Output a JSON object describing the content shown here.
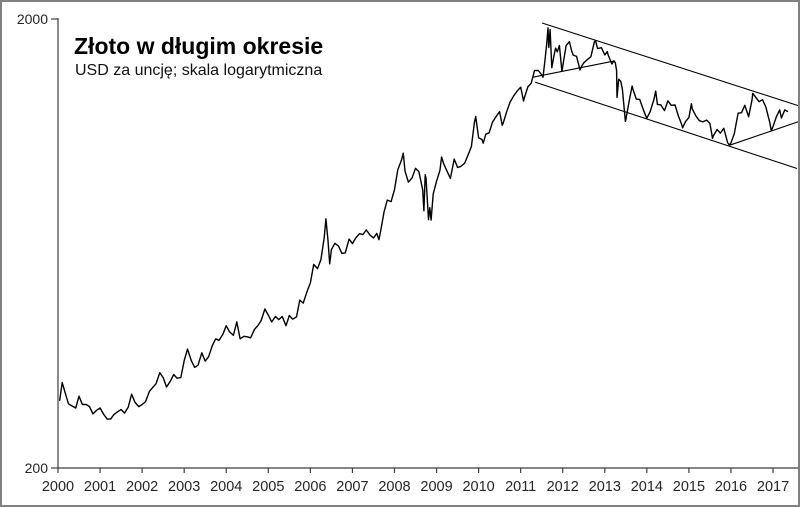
{
  "chart_data": {
    "type": "line",
    "title": "Złoto w długim okresie",
    "subtitle": "USD za uncję; skala logarytmiczna",
    "y_scale": "log",
    "ylim": [
      200,
      2000
    ],
    "grid": false,
    "legend": false,
    "line_color": "#000000",
    "trend_line_color": "#000000",
    "axis_color": "#3f3f3f",
    "tick_label_color": "#262626",
    "y_ticks": [
      {
        "value": 2000,
        "label": "2000"
      },
      {
        "value": 200,
        "label": "200"
      }
    ],
    "x_ticks": [
      {
        "value": 2000,
        "label": "2000"
      },
      {
        "value": 2001,
        "label": "2001"
      },
      {
        "value": 2002,
        "label": "2002"
      },
      {
        "value": 2003,
        "label": "2003"
      },
      {
        "value": 2004,
        "label": "2004"
      },
      {
        "value": 2005,
        "label": "2005"
      },
      {
        "value": 2006,
        "label": "2006"
      },
      {
        "value": 2007,
        "label": "2007"
      },
      {
        "value": 2008,
        "label": "2008"
      },
      {
        "value": 2009,
        "label": "2009"
      },
      {
        "value": 2010,
        "label": "2010"
      },
      {
        "value": 2011,
        "label": "2011"
      },
      {
        "value": 2012,
        "label": "2012"
      },
      {
        "value": 2013,
        "label": "2013"
      },
      {
        "value": 2014,
        "label": "2014"
      },
      {
        "value": 2015,
        "label": "2015"
      },
      {
        "value": 2016,
        "label": "2016"
      },
      {
        "value": 2017,
        "label": "2017"
      }
    ],
    "xlim": [
      2000,
      2017.62
    ],
    "series": [
      {
        "name": "gold-price-usd-per-ounce",
        "points": [
          [
            2000.04,
            283
          ],
          [
            2000.1,
            310
          ],
          [
            2000.17,
            294
          ],
          [
            2000.25,
            278
          ],
          [
            2000.33,
            275
          ],
          [
            2000.42,
            272
          ],
          [
            2000.5,
            289
          ],
          [
            2000.58,
            277
          ],
          [
            2000.67,
            277
          ],
          [
            2000.75,
            274
          ],
          [
            2000.83,
            264
          ],
          [
            2000.92,
            269
          ],
          [
            2001,
            272
          ],
          [
            2001.08,
            264
          ],
          [
            2001.17,
            257
          ],
          [
            2001.25,
            257
          ],
          [
            2001.33,
            263
          ],
          [
            2001.42,
            267
          ],
          [
            2001.5,
            270
          ],
          [
            2001.58,
            265
          ],
          [
            2001.67,
            273
          ],
          [
            2001.75,
            292
          ],
          [
            2001.83,
            280
          ],
          [
            2001.92,
            274
          ],
          [
            2002,
            277
          ],
          [
            2002.08,
            281
          ],
          [
            2002.17,
            296
          ],
          [
            2002.25,
            302
          ],
          [
            2002.33,
            308
          ],
          [
            2002.42,
            326
          ],
          [
            2002.5,
            318
          ],
          [
            2002.58,
            303
          ],
          [
            2002.67,
            312
          ],
          [
            2002.75,
            323
          ],
          [
            2002.83,
            317
          ],
          [
            2002.92,
            318
          ],
          [
            2003,
            347
          ],
          [
            2003.08,
            368
          ],
          [
            2003.17,
            347
          ],
          [
            2003.25,
            335
          ],
          [
            2003.33,
            339
          ],
          [
            2003.42,
            361
          ],
          [
            2003.5,
            346
          ],
          [
            2003.58,
            354
          ],
          [
            2003.67,
            375
          ],
          [
            2003.75,
            388
          ],
          [
            2003.83,
            385
          ],
          [
            2003.92,
            397
          ],
          [
            2004,
            415
          ],
          [
            2004.08,
            402
          ],
          [
            2004.17,
            395
          ],
          [
            2004.25,
            423
          ],
          [
            2004.33,
            388
          ],
          [
            2004.42,
            393
          ],
          [
            2004.5,
            392
          ],
          [
            2004.58,
            390
          ],
          [
            2004.67,
            407
          ],
          [
            2004.75,
            415
          ],
          [
            2004.83,
            426
          ],
          [
            2004.92,
            452
          ],
          [
            2005,
            438
          ],
          [
            2005.08,
            423
          ],
          [
            2005.17,
            435
          ],
          [
            2005.25,
            428
          ],
          [
            2005.33,
            435
          ],
          [
            2005.42,
            415
          ],
          [
            2005.5,
            437
          ],
          [
            2005.58,
            429
          ],
          [
            2005.67,
            434
          ],
          [
            2005.75,
            473
          ],
          [
            2005.83,
            466
          ],
          [
            2005.92,
            494
          ],
          [
            2006,
            517
          ],
          [
            2006.08,
            568
          ],
          [
            2006.17,
            556
          ],
          [
            2006.25,
            582
          ],
          [
            2006.33,
            651
          ],
          [
            2006.37,
            718
          ],
          [
            2006.42,
            642
          ],
          [
            2006.46,
            570
          ],
          [
            2006.5,
            613
          ],
          [
            2006.58,
            633
          ],
          [
            2006.67,
            624
          ],
          [
            2006.75,
            601
          ],
          [
            2006.83,
            603
          ],
          [
            2006.92,
            647
          ],
          [
            2007,
            632
          ],
          [
            2007.08,
            651
          ],
          [
            2007.17,
            665
          ],
          [
            2007.25,
            662
          ],
          [
            2007.33,
            678
          ],
          [
            2007.42,
            660
          ],
          [
            2007.5,
            651
          ],
          [
            2007.58,
            666
          ],
          [
            2007.63,
            645
          ],
          [
            2007.67,
            673
          ],
          [
            2007.75,
            743
          ],
          [
            2007.83,
            790
          ],
          [
            2007.92,
            784
          ],
          [
            2008,
            834
          ],
          [
            2008.08,
            923
          ],
          [
            2008.17,
            972
          ],
          [
            2008.21,
            1005
          ],
          [
            2008.25,
            917
          ],
          [
            2008.33,
            866
          ],
          [
            2008.42,
            886
          ],
          [
            2008.5,
            930
          ],
          [
            2008.58,
            914
          ],
          [
            2008.67,
            833
          ],
          [
            2008.7,
            748
          ],
          [
            2008.73,
            900
          ],
          [
            2008.75,
            885
          ],
          [
            2008.81,
            715
          ],
          [
            2008.84,
            760
          ],
          [
            2008.87,
            713
          ],
          [
            2008.92,
            815
          ],
          [
            2009,
            870
          ],
          [
            2009.08,
            919
          ],
          [
            2009.12,
            985
          ],
          [
            2009.17,
            952
          ],
          [
            2009.25,
            916
          ],
          [
            2009.33,
            883
          ],
          [
            2009.42,
            975
          ],
          [
            2009.5,
            934
          ],
          [
            2009.58,
            939
          ],
          [
            2009.67,
            955
          ],
          [
            2009.75,
            996
          ],
          [
            2009.83,
            1040
          ],
          [
            2009.9,
            1175
          ],
          [
            2009.93,
            1213
          ],
          [
            2010,
            1088
          ],
          [
            2010.08,
            1078
          ],
          [
            2010.11,
            1058
          ],
          [
            2010.17,
            1108
          ],
          [
            2010.25,
            1116
          ],
          [
            2010.33,
            1179
          ],
          [
            2010.42,
            1215
          ],
          [
            2010.5,
            1244
          ],
          [
            2010.56,
            1160
          ],
          [
            2010.58,
            1169
          ],
          [
            2010.67,
            1246
          ],
          [
            2010.75,
            1307
          ],
          [
            2010.83,
            1346
          ],
          [
            2010.92,
            1383
          ],
          [
            2011,
            1410
          ],
          [
            2011.07,
            1313
          ],
          [
            2011.08,
            1327
          ],
          [
            2011.17,
            1411
          ],
          [
            2011.25,
            1439
          ],
          [
            2011.33,
            1535
          ],
          [
            2011.42,
            1536
          ],
          [
            2011.5,
            1502
          ],
          [
            2011.53,
            1483
          ],
          [
            2011.58,
            1628
          ],
          [
            2011.62,
            1758
          ],
          [
            2011.65,
            1912
          ],
          [
            2011.67,
            1728
          ],
          [
            2011.7,
            1895
          ],
          [
            2011.74,
            1558
          ],
          [
            2011.79,
            1655
          ],
          [
            2011.83,
            1722
          ],
          [
            2011.87,
            1690
          ],
          [
            2011.92,
            1746
          ],
          [
            2011.98,
            1530
          ],
          [
            2012.08,
            1744
          ],
          [
            2012.16,
            1781
          ],
          [
            2012.21,
            1700
          ],
          [
            2012.25,
            1662
          ],
          [
            2012.33,
            1651
          ],
          [
            2012.41,
            1540
          ],
          [
            2012.45,
            1570
          ],
          [
            2012.5,
            1598
          ],
          [
            2012.58,
            1622
          ],
          [
            2012.67,
            1648
          ],
          [
            2012.75,
            1776
          ],
          [
            2012.78,
            1790
          ],
          [
            2012.83,
            1719
          ],
          [
            2012.92,
            1726
          ],
          [
            2013,
            1664
          ],
          [
            2013.06,
            1692
          ],
          [
            2013.08,
            1664
          ],
          [
            2013.17,
            1588
          ],
          [
            2013.22,
            1615
          ],
          [
            2013.25,
            1598
          ],
          [
            2013.28,
            1535
          ],
          [
            2013.29,
            1338
          ],
          [
            2013.33,
            1469
          ],
          [
            2013.38,
            1452
          ],
          [
            2013.42,
            1394
          ],
          [
            2013.49,
            1183
          ],
          [
            2013.5,
            1192
          ],
          [
            2013.58,
            1314
          ],
          [
            2013.65,
            1418
          ],
          [
            2013.67,
            1394
          ],
          [
            2013.75,
            1326
          ],
          [
            2013.83,
            1324
          ],
          [
            2013.92,
            1253
          ],
          [
            2014,
            1202
          ],
          [
            2014.08,
            1244
          ],
          [
            2014.17,
            1326
          ],
          [
            2014.21,
            1382
          ],
          [
            2014.25,
            1291
          ],
          [
            2014.33,
            1288
          ],
          [
            2014.42,
            1250
          ],
          [
            2014.5,
            1315
          ],
          [
            2014.58,
            1285
          ],
          [
            2014.67,
            1287
          ],
          [
            2014.75,
            1216
          ],
          [
            2014.83,
            1164
          ],
          [
            2014.85,
            1145
          ],
          [
            2014.92,
            1182
          ],
          [
            2015,
            1206
          ],
          [
            2015.06,
            1295
          ],
          [
            2015.08,
            1260
          ],
          [
            2015.17,
            1214
          ],
          [
            2015.25,
            1187
          ],
          [
            2015.33,
            1180
          ],
          [
            2015.42,
            1191
          ],
          [
            2015.5,
            1171
          ],
          [
            2015.56,
            1085
          ],
          [
            2015.58,
            1098
          ],
          [
            2015.67,
            1135
          ],
          [
            2015.75,
            1114
          ],
          [
            2015.83,
            1142
          ],
          [
            2015.92,
            1061
          ],
          [
            2015.96,
            1048
          ],
          [
            2016,
            1060
          ],
          [
            2016.08,
            1111
          ],
          [
            2016.17,
            1234
          ],
          [
            2016.25,
            1237
          ],
          [
            2016.33,
            1285
          ],
          [
            2016.42,
            1212
          ],
          [
            2016.5,
            1320
          ],
          [
            2016.52,
            1366
          ],
          [
            2016.58,
            1342
          ],
          [
            2016.67,
            1309
          ],
          [
            2016.75,
            1322
          ],
          [
            2016.83,
            1272
          ],
          [
            2016.92,
            1178
          ],
          [
            2016.96,
            1128
          ],
          [
            2017,
            1152
          ],
          [
            2017.08,
            1212
          ],
          [
            2017.16,
            1255
          ],
          [
            2017.2,
            1204
          ],
          [
            2017.28,
            1255
          ],
          [
            2017.34,
            1245
          ]
        ]
      }
    ],
    "trend_lines": [
      {
        "name": "upper-channel-line",
        "x1": 2011.51,
        "p1": 1959,
        "x2": 2017.64,
        "p2": 1279
      },
      {
        "name": "lower-channel-line",
        "x1": 2011.34,
        "p1": 1447,
        "x2": 2017.57,
        "p2": 929
      },
      {
        "name": "support-line-2011-2013",
        "x1": 2011.29,
        "p1": 1484,
        "x2": 2013.2,
        "p2": 1611
      },
      {
        "name": "support-line-2015-2017",
        "x1": 2015.97,
        "p1": 1047,
        "x2": 2017.64,
        "p2": 1184
      }
    ]
  }
}
